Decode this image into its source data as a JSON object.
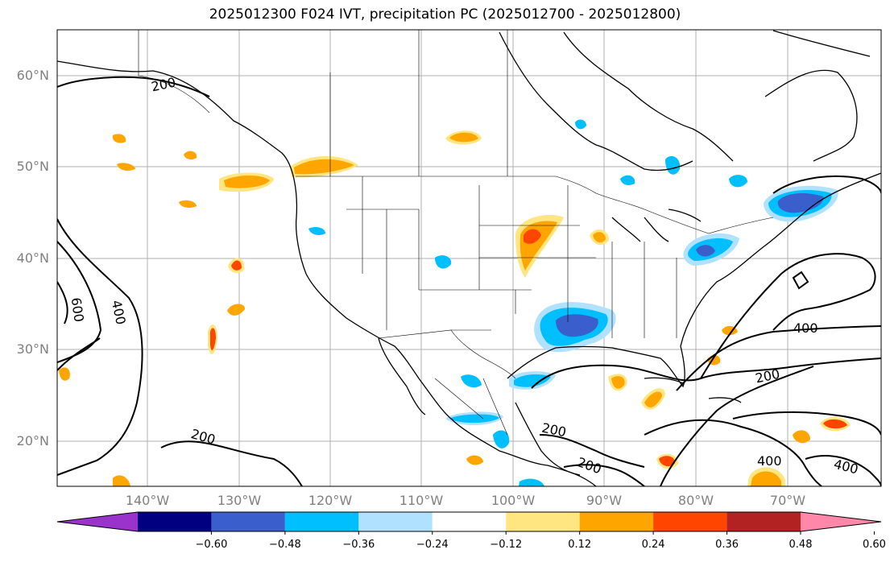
{
  "title": "2025012300 F024 IVT, precipitation PC (2025012700 - 2025012800)",
  "map": {
    "lat_labels": [
      "60°N",
      "50°N",
      "40°N",
      "30°N",
      "20°N"
    ],
    "lon_labels": [
      "140°W",
      "130°W",
      "120°W",
      "110°W",
      "100°W",
      "90°W",
      "80°W",
      "70°W"
    ],
    "contour_labels": [
      "200",
      "600",
      "400",
      "200",
      "200",
      "200",
      "400",
      "200",
      "400",
      "400"
    ]
  },
  "colorbar": {
    "ticks": [
      "−0.60",
      "−0.48",
      "−0.36",
      "−0.24",
      "−0.12",
      "0.12",
      "0.24",
      "0.36",
      "0.48",
      "0.60"
    ],
    "colors": [
      "#9933cc",
      "#000080",
      "#3a5fcd",
      "#00bfff",
      "#b0e2ff",
      "#ffffff",
      "#ffe680",
      "#ffa500",
      "#ff4500",
      "#b22222",
      "#ff88aa"
    ]
  },
  "colors": {
    "light_blue": "#b0e2ff",
    "sky_blue": "#00bfff",
    "royal_blue": "#3a5fcd",
    "yellow": "#ffe680",
    "orange": "#ffa500",
    "red_orange": "#ff4500",
    "grid": "#b0b0b0",
    "label": "#808080"
  }
}
